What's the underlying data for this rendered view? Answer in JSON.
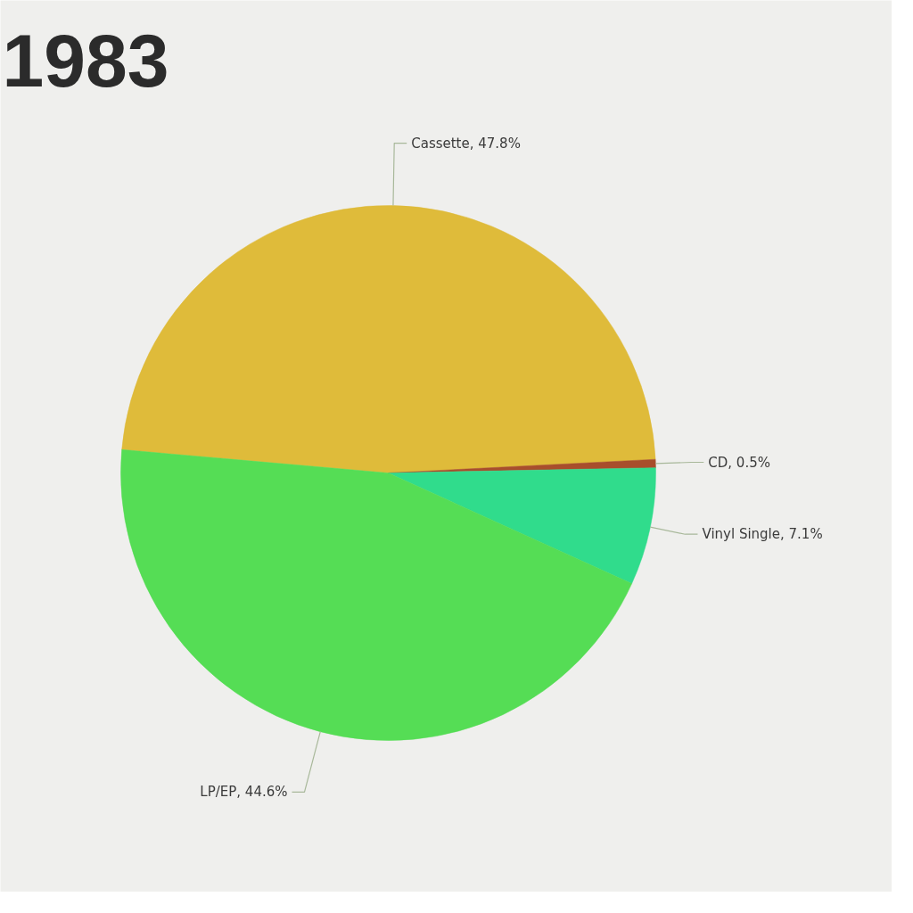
{
  "chart_data": {
    "type": "pie",
    "title": "1983",
    "categories": [
      "Cassette",
      "CD",
      "Vinyl Single",
      "LP/EP"
    ],
    "values": [
      47.8,
      0.5,
      7.1,
      44.6
    ],
    "colors": [
      "#dfbb3a",
      "#a84e2c",
      "#30dc8c",
      "#55dd55"
    ],
    "value_labels": [
      "47.8%",
      "0.5%",
      "7.1%",
      "44.6%"
    ]
  }
}
